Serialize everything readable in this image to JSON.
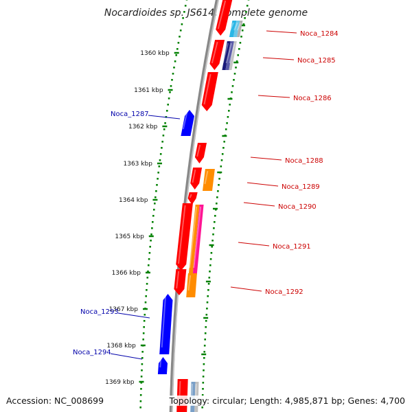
{
  "title": "Nocardioides sp. JS614, complete genome",
  "footer": {
    "accession": "Accession: NC_008699",
    "summary": "Topology: circular; Length: 4,985,871 bp; Genes: 4,700"
  },
  "colors": {
    "forward_strand": "#ff0000",
    "reverse_strand": "#0000ff",
    "forward_label": "#cc0000",
    "reverse_label": "#0000aa",
    "ticks": "#008000",
    "orange_track": "#ff8c00",
    "magenta_track": "#ff1493",
    "backbone": "#888888"
  },
  "ticks": [
    {
      "label": "1360 kbp",
      "kbp": 1360
    },
    {
      "label": "1361 kbp",
      "kbp": 1361
    },
    {
      "label": "1362 kbp",
      "kbp": 1362
    },
    {
      "label": "1363 kbp",
      "kbp": 1363
    },
    {
      "label": "1364 kbp",
      "kbp": 1364
    },
    {
      "label": "1365 kbp",
      "kbp": 1365
    },
    {
      "label": "1366 kbp",
      "kbp": 1366
    },
    {
      "label": "1367 kbp",
      "kbp": 1367
    },
    {
      "label": "1368 kbp",
      "kbp": 1368
    },
    {
      "label": "1369 kbp",
      "kbp": 1369
    }
  ],
  "gene_labels": [
    {
      "text": "Noca_1284",
      "strand": "forward"
    },
    {
      "text": "Noca_1285",
      "strand": "forward"
    },
    {
      "text": "Noca_1286",
      "strand": "forward"
    },
    {
      "text": "Noca_1287",
      "strand": "reverse"
    },
    {
      "text": "Noca_1288",
      "strand": "forward"
    },
    {
      "text": "Noca_1289",
      "strand": "forward"
    },
    {
      "text": "Noca_1290",
      "strand": "forward"
    },
    {
      "text": "Noca_1291",
      "strand": "forward"
    },
    {
      "text": "Noca_1292",
      "strand": "forward"
    },
    {
      "text": "Noca_1293",
      "strand": "reverse"
    },
    {
      "text": "Noca_1294",
      "strand": "reverse"
    }
  ]
}
